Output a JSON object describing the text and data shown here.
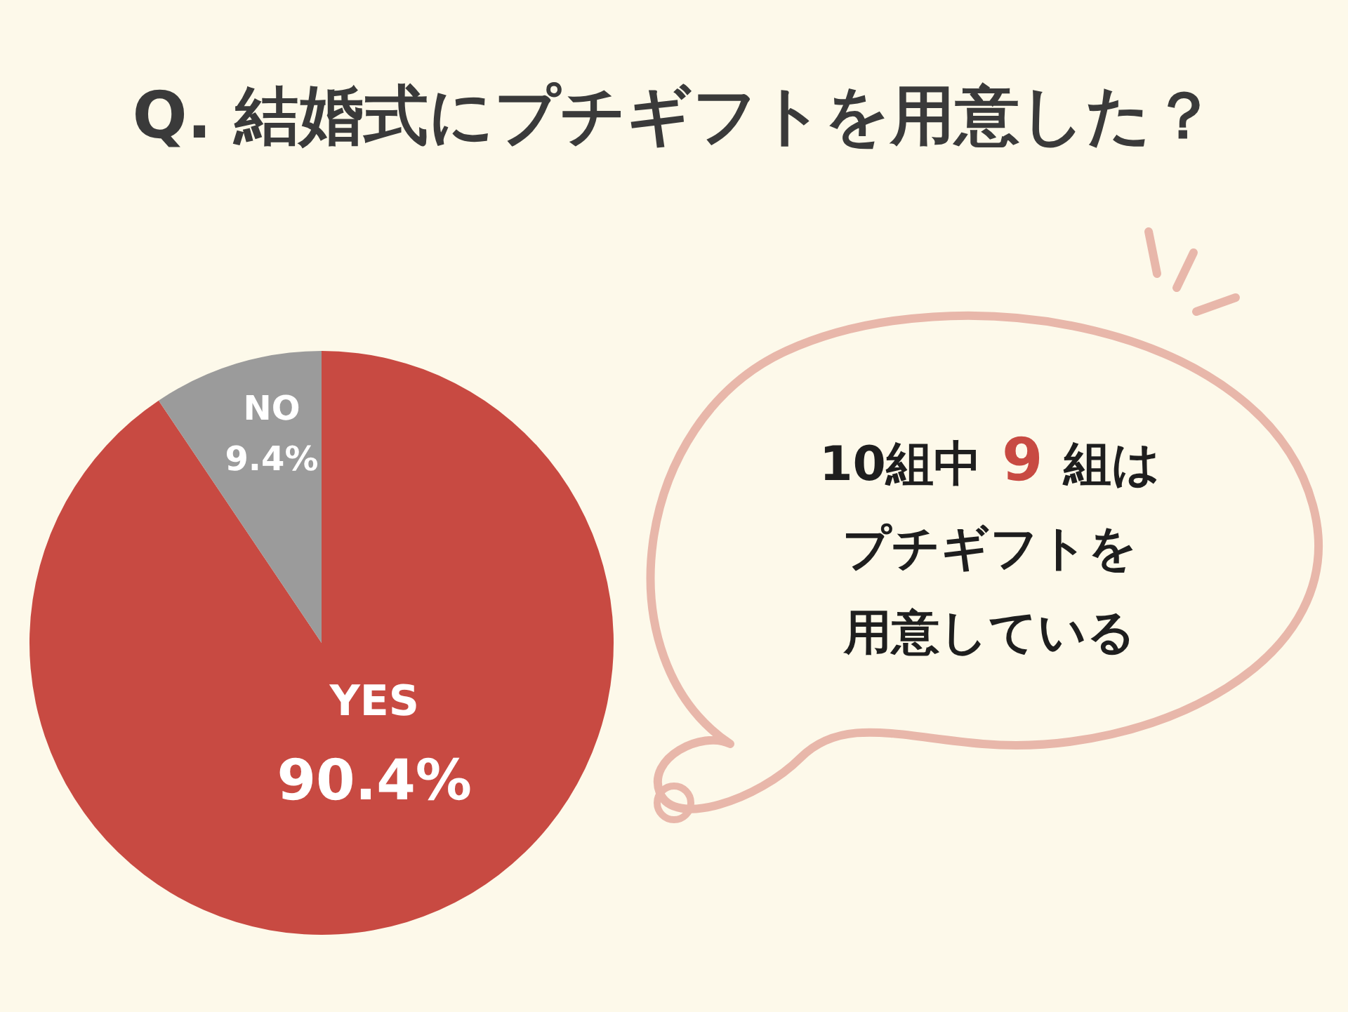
{
  "chart_data": {
    "type": "pie",
    "title": "Q. 結婚式にプチギフトを用意した？",
    "categories": [
      "YES",
      "NO"
    ],
    "values": [
      90.4,
      9.4
    ],
    "value_labels": [
      "90.4%",
      "9.4%"
    ],
    "colors": [
      "#c84a42",
      "#9b9b9b"
    ],
    "annotations": [
      "10組中 9 組は",
      "プチギフトを",
      "用意している"
    ]
  }
}
